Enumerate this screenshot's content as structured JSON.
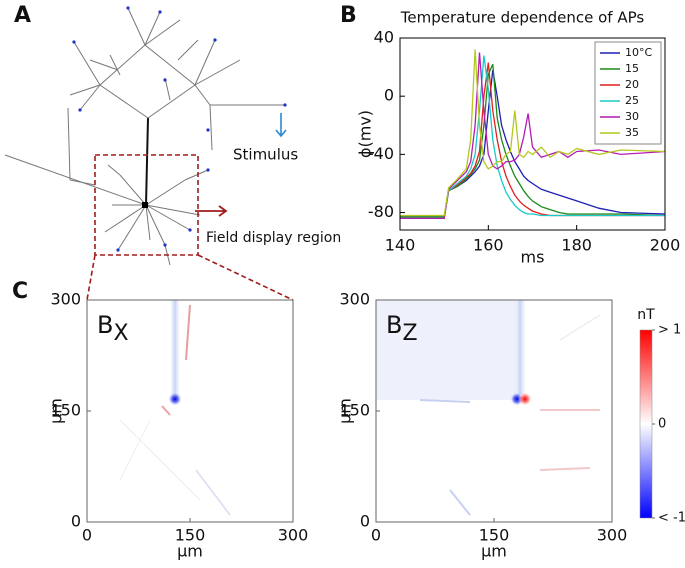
{
  "panel_labels": [
    "A",
    "B",
    "C"
  ],
  "diagram": {
    "stimulus": "Stimulus",
    "field_region": "Field display region"
  },
  "chart_data": [
    {
      "type": "line",
      "title": "Temperature dependence of APs",
      "xlabel": "ms",
      "ylabel": "ϕ(mv)",
      "x": [
        140,
        150,
        151,
        153,
        155,
        156,
        157,
        158,
        159,
        160,
        161,
        162,
        163,
        164,
        165,
        166,
        167,
        168,
        169,
        170,
        172,
        174,
        176,
        178,
        180,
        185,
        190,
        200
      ],
      "xlim": [
        140,
        200
      ],
      "xticks": [
        140,
        160,
        180,
        200
      ],
      "ylim": [
        -92,
        40
      ],
      "yticks": [
        -80,
        -40,
        0,
        40
      ],
      "legend": "upper right",
      "grid": false,
      "series": [
        {
          "name": "10°C",
          "color": "#1f1fb4",
          "values": [
            -83,
            -83,
            -65,
            -62,
            -58,
            -55,
            -52,
            -48,
            -40,
            -10,
            18,
            0,
            -20,
            -30,
            -38,
            -45,
            -50,
            -55,
            -58,
            -60,
            -64,
            -66,
            -68,
            -70,
            -72,
            -77,
            -80,
            -81
          ]
        },
        {
          "name": "15",
          "color": "#1a8a1a",
          "values": [
            -83,
            -83,
            -65,
            -62,
            -57,
            -54,
            -50,
            -44,
            -20,
            15,
            22,
            -15,
            -30,
            -40,
            -48,
            -55,
            -60,
            -65,
            -69,
            -72,
            -76,
            -78,
            -80,
            -81,
            -81,
            -81,
            -81,
            -82
          ]
        },
        {
          "name": "20",
          "color": "#e02020",
          "values": [
            -84,
            -84,
            -65,
            -61,
            -56,
            -53,
            -48,
            -38,
            0,
            23,
            -10,
            -30,
            -45,
            -55,
            -62,
            -68,
            -72,
            -75,
            -77,
            -79,
            -81,
            -82,
            -82,
            -82,
            -82,
            -82,
            -82,
            -82
          ]
        },
        {
          "name": "25",
          "color": "#1cc8c8",
          "values": [
            -84,
            -84,
            -65,
            -60,
            -55,
            -50,
            -40,
            -10,
            28,
            5,
            -30,
            -48,
            -58,
            -66,
            -71,
            -75,
            -78,
            -80,
            -81,
            -81,
            -82,
            -82,
            -82,
            -82,
            -82,
            -82,
            -82,
            -82
          ]
        },
        {
          "name": "30",
          "color": "#b41cb4",
          "values": [
            -84,
            -84,
            -64,
            -58,
            -52,
            -45,
            -20,
            30,
            -10,
            -40,
            -48,
            -50,
            -48,
            -45,
            -45,
            -44,
            -40,
            -28,
            -12,
            -35,
            -42,
            -40,
            -38,
            -42,
            -38,
            -37,
            -40,
            -38
          ]
        },
        {
          "name": "35",
          "color": "#b4c81c",
          "values": [
            -82,
            -82,
            -63,
            -57,
            -50,
            -30,
            32,
            -20,
            -45,
            -50,
            -48,
            -45,
            -45,
            -40,
            -38,
            -10,
            -40,
            -42,
            -38,
            -40,
            -35,
            -42,
            -38,
            -40,
            -36,
            -40,
            -37,
            -38
          ]
        }
      ]
    },
    {
      "type": "heatmap",
      "title": {
        "base": "B",
        "sub": "X"
      },
      "xlabel": "μm",
      "ylabel": "μm",
      "xlim": [
        0,
        300
      ],
      "ylim": [
        0,
        300
      ],
      "xticks": [
        0,
        150,
        300
      ],
      "yticks": [
        0,
        150,
        300
      ]
    },
    {
      "type": "heatmap",
      "title": {
        "base": "B",
        "sub": "Z"
      },
      "xlabel": "μm",
      "ylabel": "μm",
      "xlim": [
        0,
        300
      ],
      "ylim": [
        0,
        300
      ],
      "xticks": [
        0,
        150,
        300
      ],
      "yticks": [
        0,
        150,
        300
      ],
      "colorbar": {
        "label": "nT",
        "lim": [
          -1,
          1
        ],
        "ticks": [
          {
            "value": -1,
            "label": "< -1"
          },
          0,
          {
            "value": 1,
            "label": "> 1"
          }
        ]
      }
    }
  ]
}
